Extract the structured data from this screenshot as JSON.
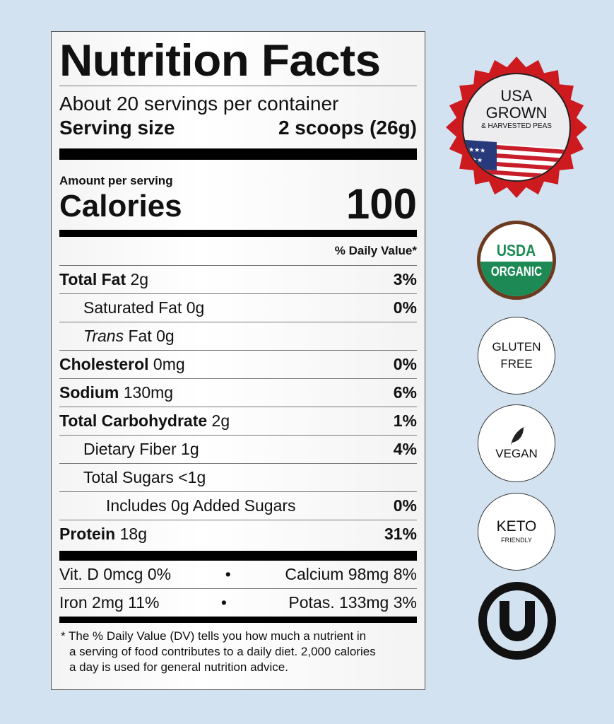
{
  "label": {
    "title": "Nutrition Facts",
    "servings_per_container": "About 20 servings per container",
    "serving_size_label": "Serving size",
    "serving_size_value": "2 scoops (26g)",
    "amount_per_serving": "Amount per serving",
    "calories_label": "Calories",
    "calories_value": "100",
    "daily_value_header": "% Daily Value*",
    "nutrients": [
      {
        "name": "Total Fat",
        "amount": "2g",
        "dv": "3%"
      },
      {
        "name": "Saturated Fat",
        "amount": "0g",
        "dv": "0%"
      },
      {
        "name": "Trans",
        "name_rest": "Fat",
        "amount": "0g",
        "dv": ""
      },
      {
        "name": "Cholesterol",
        "amount": "0mg",
        "dv": "0%"
      },
      {
        "name": "Sodium",
        "amount": "130mg",
        "dv": "6%"
      },
      {
        "name": "Total Carbohydrate",
        "amount": "2g",
        "dv": "1%"
      },
      {
        "name": "Dietary Fiber",
        "amount": "1g",
        "dv": "4%"
      },
      {
        "name": "Total Sugars",
        "amount": "<1g",
        "dv": ""
      },
      {
        "name": "Includes 0g Added Sugars",
        "amount": "",
        "dv": "0%"
      },
      {
        "name": "Protein",
        "amount": "18g",
        "dv": "31%"
      }
    ],
    "vitamins": [
      {
        "left": "Vit. D 0mcg 0%",
        "sep": "•",
        "right": "Calcium 98mg 8%"
      },
      {
        "left": "Iron 2mg 11%",
        "sep": "•",
        "right": "Potas. 133mg 3%"
      }
    ],
    "footnote": [
      "* The % Daily Value (DV) tells you how much a nutrient in",
      "a serving of food contributes to a daily diet. 2,000 calories",
      "a day is used for general nutrition advice."
    ]
  },
  "badges": {
    "usa": {
      "line1": "USA",
      "line2": "GROWN",
      "line3": "& HARVESTED PEAS",
      "icon": "us-flag-icon",
      "color": "#cc1a1f"
    },
    "usda": {
      "line1": "USDA",
      "line2": "ORGANIC",
      "color": "#1d8a55",
      "ring": "#6b3a1f"
    },
    "gluten": {
      "line1": "GLUTEN",
      "line2": "FREE"
    },
    "vegan": {
      "text": "VEGAN",
      "icon": "leaf-icon"
    },
    "keto": {
      "line1": "KETO",
      "line2": "FRIENDLY"
    },
    "kosher": {
      "icon": "ou-kosher-icon"
    }
  }
}
